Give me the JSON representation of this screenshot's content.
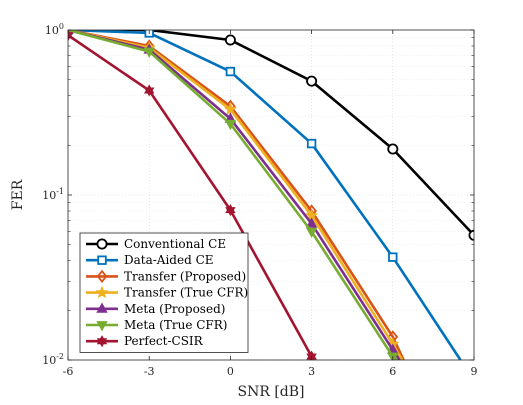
{
  "chart_data": {
    "type": "line",
    "xlabel": "SNR [dB]",
    "ylabel": "FER",
    "xlim": [
      -6,
      9
    ],
    "ylim": [
      0.01,
      1
    ],
    "yscale": "log",
    "grid": true,
    "legend_position": "bottom-left",
    "x_ticks": [
      -6,
      -3,
      0,
      3,
      6,
      9
    ],
    "x_tick_labels": [
      "-6",
      "-3",
      "0",
      "3",
      "6",
      "9"
    ],
    "y_ticks": [
      0.01,
      0.1,
      1
    ],
    "y_tick_labels": [
      {
        "base": "10",
        "exp": "-2"
      },
      {
        "base": "10",
        "exp": "-1"
      },
      {
        "base": "10",
        "exp": "0"
      }
    ],
    "series": [
      {
        "name": "Conventional CE",
        "color": "#000000",
        "marker": "circle",
        "x": [
          -6,
          -3,
          0,
          3,
          6,
          9
        ],
        "y": [
          1.0,
          1.0,
          0.87,
          0.49,
          0.19,
          0.057
        ]
      },
      {
        "name": "Data-Aided CE",
        "color": "#0072BD",
        "marker": "square",
        "x": [
          -6,
          -3,
          0,
          3,
          6,
          8.5
        ],
        "y": [
          1.0,
          0.96,
          0.56,
          0.205,
          0.042,
          0.01
        ]
      },
      {
        "name": "Transfer (Proposed)",
        "color": "#D95319",
        "marker": "diamond",
        "x": [
          -6,
          -3,
          0,
          3,
          6,
          6.4
        ],
        "y": [
          1.0,
          0.8,
          0.345,
          0.08,
          0.0138,
          0.01
        ]
      },
      {
        "name": "Transfer (True CFR)",
        "color": "#EDB120",
        "marker": "star",
        "x": [
          -6,
          -3,
          0,
          3,
          6,
          6.35
        ],
        "y": [
          1.0,
          0.78,
          0.33,
          0.075,
          0.0125,
          0.01
        ]
      },
      {
        "name": "Meta (Proposed)",
        "color": "#7E2F8E",
        "marker": "triangle-up",
        "x": [
          -6,
          -3,
          0,
          3,
          6,
          6.25
        ],
        "y": [
          1.0,
          0.76,
          0.29,
          0.067,
          0.0115,
          0.01
        ]
      },
      {
        "name": "Meta (True CFR)",
        "color": "#77AC30",
        "marker": "triangle-down",
        "x": [
          -6,
          -3,
          0,
          3,
          6,
          6.15
        ],
        "y": [
          1.0,
          0.74,
          0.27,
          0.06,
          0.0105,
          0.01
        ]
      },
      {
        "name": "Perfect-CSIR",
        "color": "#A2142F",
        "marker": "hexagram",
        "x": [
          -6,
          -3,
          0,
          3
        ],
        "y": [
          0.93,
          0.43,
          0.081,
          0.0105
        ]
      }
    ]
  }
}
